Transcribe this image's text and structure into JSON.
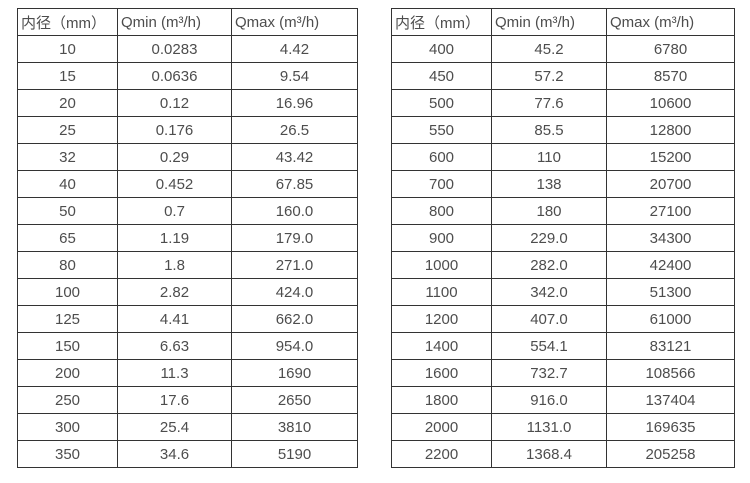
{
  "page": {
    "background": "#ffffff",
    "border_color": "#333333",
    "text_color": "#4d4d4d"
  },
  "tables": [
    {
      "name": "flow-range-table-small-diameters",
      "headers": [
        "内径（mm）",
        "Qmin (m³/h)",
        "Qmax (m³/h)"
      ],
      "rows": [
        [
          "10",
          "0.0283",
          "4.42"
        ],
        [
          "15",
          "0.0636",
          "9.54"
        ],
        [
          "20",
          "0.12",
          "16.96"
        ],
        [
          "25",
          "0.176",
          "26.5"
        ],
        [
          "32",
          "0.29",
          "43.42"
        ],
        [
          "40",
          "0.452",
          "67.85"
        ],
        [
          "50",
          "0.7",
          "160.0"
        ],
        [
          "65",
          "1.19",
          "179.0"
        ],
        [
          "80",
          "1.8",
          "271.0"
        ],
        [
          "100",
          "2.82",
          "424.0"
        ],
        [
          "125",
          "4.41",
          "662.0"
        ],
        [
          "150",
          "6.63",
          "954.0"
        ],
        [
          "200",
          "11.3",
          "1690"
        ],
        [
          "250",
          "17.6",
          "2650"
        ],
        [
          "300",
          "25.4",
          "3810"
        ],
        [
          "350",
          "34.6",
          "5190"
        ]
      ]
    },
    {
      "name": "flow-range-table-large-diameters",
      "headers": [
        "内径（mm）",
        "Qmin (m³/h)",
        "Qmax (m³/h)"
      ],
      "rows": [
        [
          "400",
          "45.2",
          "6780"
        ],
        [
          "450",
          "57.2",
          "8570"
        ],
        [
          "500",
          "77.6",
          "10600"
        ],
        [
          "550",
          "85.5",
          "12800"
        ],
        [
          "600",
          "110",
          "15200"
        ],
        [
          "700",
          "138",
          "20700"
        ],
        [
          "800",
          "180",
          "27100"
        ],
        [
          "900",
          "229.0",
          "34300"
        ],
        [
          "1000",
          "282.0",
          "42400"
        ],
        [
          "1100",
          "342.0",
          "51300"
        ],
        [
          "1200",
          "407.0",
          "61000"
        ],
        [
          "1400",
          "554.1",
          "83121"
        ],
        [
          "1600",
          "732.7",
          "108566"
        ],
        [
          "1800",
          "916.0",
          "137404"
        ],
        [
          "2000",
          "1131.0",
          "169635"
        ],
        [
          "2200",
          "1368.4",
          "205258"
        ]
      ]
    }
  ]
}
